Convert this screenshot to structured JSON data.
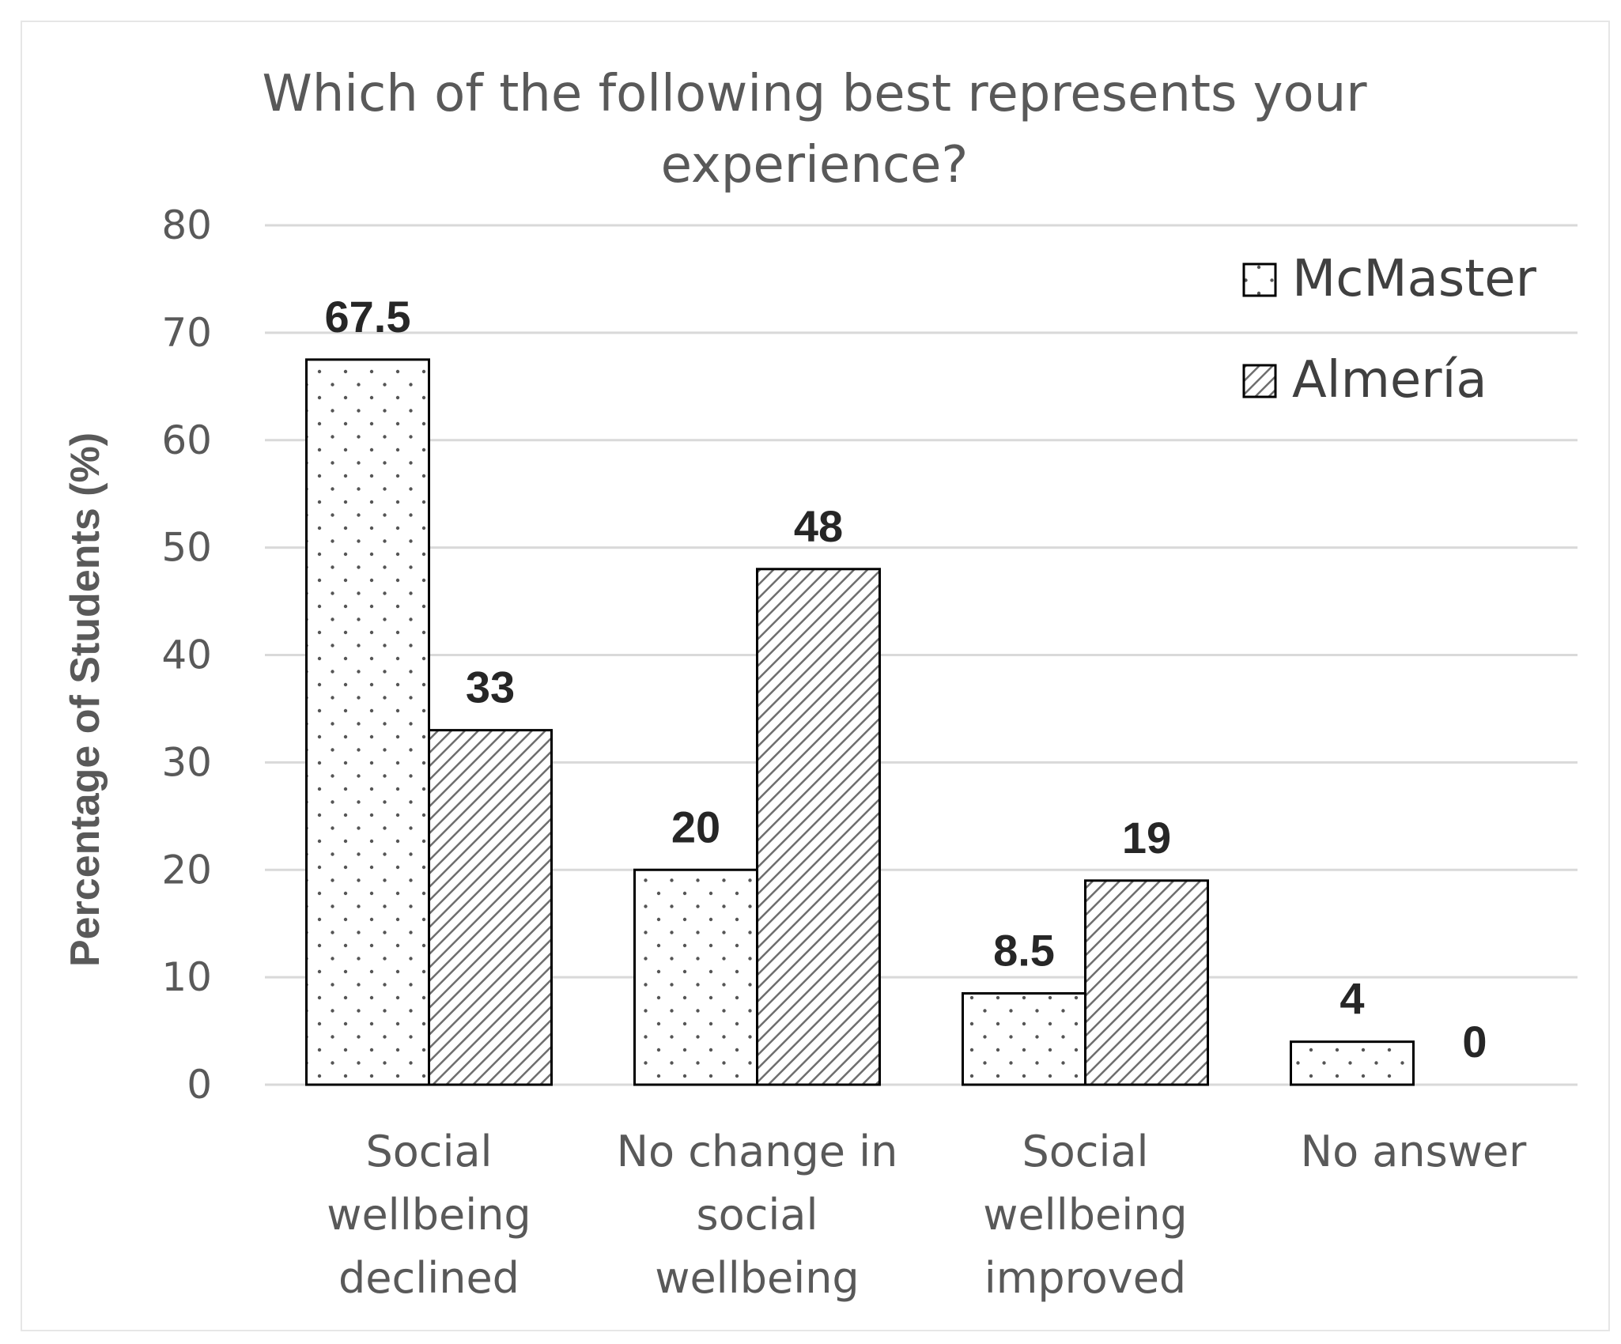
{
  "chart_data": {
    "type": "bar",
    "title_lines": [
      "Which of the following best represents your",
      "experience?"
    ],
    "ylabel": "Percentage of Students (%)",
    "xlabel": "",
    "ylim": [
      0,
      80
    ],
    "yticks": [
      0,
      10,
      20,
      30,
      40,
      50,
      60,
      70,
      80
    ],
    "grid": true,
    "legend_position": "top-right",
    "categories": [
      [
        "Social",
        "wellbeing",
        "declined"
      ],
      [
        "No change in",
        "social",
        "wellbeing"
      ],
      [
        "Social",
        "wellbeing",
        "improved"
      ],
      [
        "No answer"
      ]
    ],
    "series": [
      {
        "name": "McMaster",
        "pattern": "dots",
        "values": [
          67.5,
          20,
          8.5,
          4
        ],
        "labels": [
          "67.5",
          "20",
          "8.5",
          "4"
        ]
      },
      {
        "name": "Almería",
        "pattern": "diagonal-hatch",
        "values": [
          33,
          48,
          19,
          0
        ],
        "labels": [
          "33",
          "48",
          "19",
          "0"
        ]
      }
    ],
    "colors": {
      "bar_stroke": "#000000",
      "bar_fill": "#ffffff",
      "grid": "#d9d9d9",
      "text": "#595959"
    }
  }
}
